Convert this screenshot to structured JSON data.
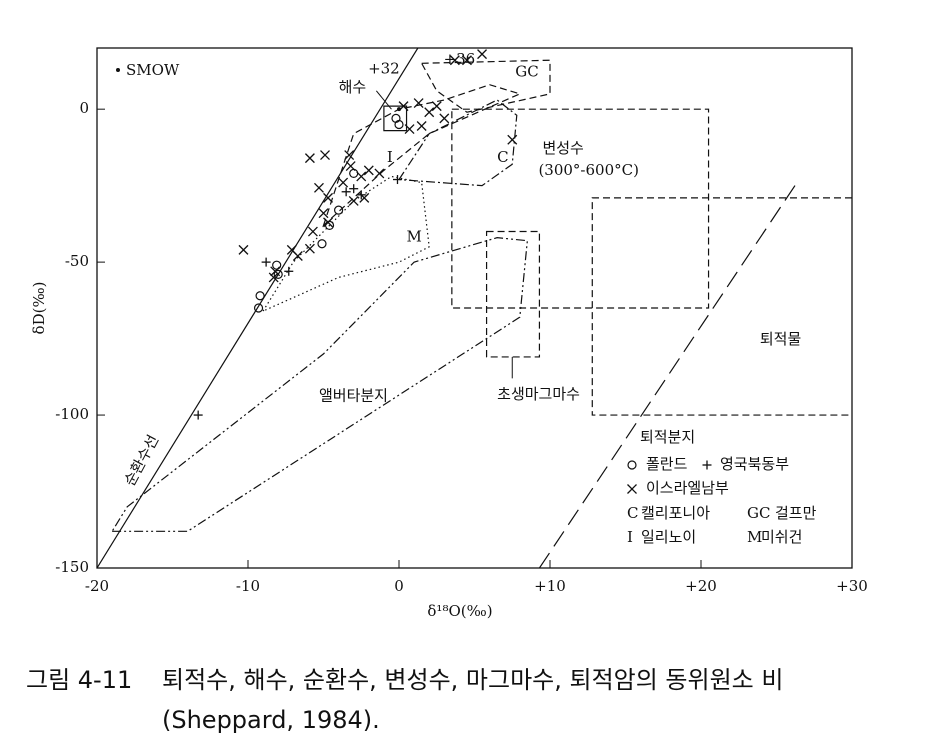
{
  "chart_data": {
    "type": "scatter",
    "xlabel": "δ¹⁸O(‰)",
    "ylabel": "δD(‰)",
    "xlim": [
      -20,
      30
    ],
    "ylim": [
      -150,
      20
    ],
    "xticks": [
      -20,
      -10,
      0,
      {
        "value": 10,
        "label": "+10"
      },
      {
        "value": 20,
        "label": "+20"
      },
      {
        "value": 30,
        "label": "+30"
      }
    ],
    "yticks": [
      0,
      -50,
      -100,
      -150
    ],
    "series": [
      {
        "name": "SMOW",
        "marker": "dot",
        "color": "#111",
        "x": [
          0
        ],
        "y": [
          0
        ]
      },
      {
        "name": "폴란드",
        "marker": "circle",
        "color": "#111",
        "x": [
          -0.2,
          0,
          -3,
          -4,
          -4.6,
          -5.1,
          -8.1,
          -8,
          -9.2,
          -9.3
        ],
        "y": [
          -3,
          -5,
          -21,
          -33,
          -38,
          -44,
          -51,
          -54,
          -61,
          -65
        ]
      },
      {
        "name": "영국북동부",
        "marker": "plus",
        "color": "#111",
        "x": [
          -3.5,
          -3,
          -2.5,
          -0.1,
          -7.3,
          -8.8,
          -13.3
        ],
        "y": [
          -27,
          -26,
          -28,
          -23,
          -53,
          -50,
          -100
        ]
      },
      {
        "name": "이스라엘남부",
        "marker": "cross",
        "color": "#111",
        "x": [
          -5.9,
          -4.9,
          -3.3,
          -3.2,
          -5.3,
          -4.7,
          -3.7,
          -3,
          -2.5,
          -2,
          -1.3,
          -2.3,
          -5,
          -4.7,
          -5.7,
          -5.9,
          -6.7,
          -7.1,
          -8.2,
          -8.3,
          -10.3,
          3.7,
          4.5,
          5.5,
          0.3,
          1.3,
          2,
          2.5,
          3,
          0.7,
          1.5,
          7.5
        ],
        "y": [
          -16,
          -15,
          -15,
          -18.6,
          -25.7,
          -29,
          -24,
          -30,
          -22,
          -20,
          -21,
          -29,
          -34,
          -37,
          -40,
          -45.6,
          -48,
          -46,
          -53,
          -55,
          -46,
          16,
          16,
          18,
          1,
          2,
          -1,
          1,
          -3,
          -6.5,
          -5.5,
          -10
        ]
      }
    ],
    "lines": [
      {
        "label": "순환수선",
        "style": "solid",
        "x": [
          -20,
          1.25
        ],
        "y": [
          -150,
          20
        ]
      }
    ],
    "regions": [
      {
        "label": "변성수",
        "sublabel": "(300°-600°C)",
        "style": "dashed",
        "closed": true,
        "x": [
          3.5,
          20.5,
          20.5,
          3.5
        ],
        "y": [
          0,
          0,
          -65,
          -65
        ]
      },
      {
        "label": "퇴적물",
        "style": "dashed",
        "closed": false,
        "x": [
          30,
          12.8,
          12.8,
          30
        ],
        "y": [
          -29,
          -29,
          -100,
          -100
        ]
      },
      {
        "style": "long-dash",
        "closed": false,
        "x": [
          9.3,
          26.3
        ],
        "y": [
          -150,
          -24.4
        ]
      },
      {
        "label": "초생마그마수",
        "style": "dashed",
        "closed": true,
        "x": [
          5.8,
          9.3,
          9.3,
          5.8
        ],
        "y": [
          -40,
          -40,
          -81,
          -81
        ]
      },
      {
        "label": "GC",
        "style": "dashed",
        "closed": true,
        "x": [
          1.5,
          10,
          10,
          4.5,
          2.5
        ],
        "y": [
          15,
          16,
          5,
          -1,
          6
        ]
      },
      {
        "label": "C",
        "style": "dash-dot",
        "closed": true,
        "x": [
          0,
          2,
          6.5,
          7.8,
          7.5,
          5.5
        ],
        "y": [
          -23,
          -8,
          3,
          -2,
          -18,
          -25
        ]
      },
      {
        "label": "I",
        "style": "dashed",
        "closed": true,
        "x": [
          -5,
          -3,
          0,
          3,
          6,
          8,
          2,
          -1
        ],
        "y": [
          -38,
          -8,
          0,
          3,
          8,
          5,
          -8,
          -20
        ]
      },
      {
        "label": "M",
        "style": "dotted",
        "closed": true,
        "x": [
          -9,
          -7,
          -3,
          -0.5,
          1.5,
          2,
          0,
          -4
        ],
        "y": [
          -66,
          -50,
          -30,
          -22,
          -24,
          -45,
          -50,
          -55
        ]
      },
      {
        "label": "앨버타분지",
        "style": "dash-dot-dot",
        "closed": true,
        "x": [
          -19,
          -14,
          8,
          8.5,
          6.5,
          1,
          -5,
          -18
        ],
        "y": [
          -138,
          -138,
          -68,
          -43,
          -42,
          -50,
          -80,
          -130
        ]
      },
      {
        "label": "해수",
        "style": "solid",
        "closed": true,
        "x": [
          -1,
          0.5,
          0.5,
          -1
        ],
        "y": [
          -7,
          -7,
          1,
          1
        ]
      }
    ],
    "annotations": [
      "+32",
      "+36"
    ],
    "legend_title": "퇴적분지",
    "keys": [
      {
        "abbr": "C",
        "name": "캘리포니아"
      },
      {
        "abbr": "GC",
        "name": "걸프만"
      },
      {
        "abbr": "I",
        "name": "일리노이"
      },
      {
        "abbr": "M",
        "name": "미쉬건"
      }
    ]
  },
  "caption": {
    "label": "그림 4-11",
    "text": "퇴적수, 해수, 순환수, 변성수, 마그마수, 퇴적암의 동위원소 비 (Sheppard, 1984)."
  }
}
